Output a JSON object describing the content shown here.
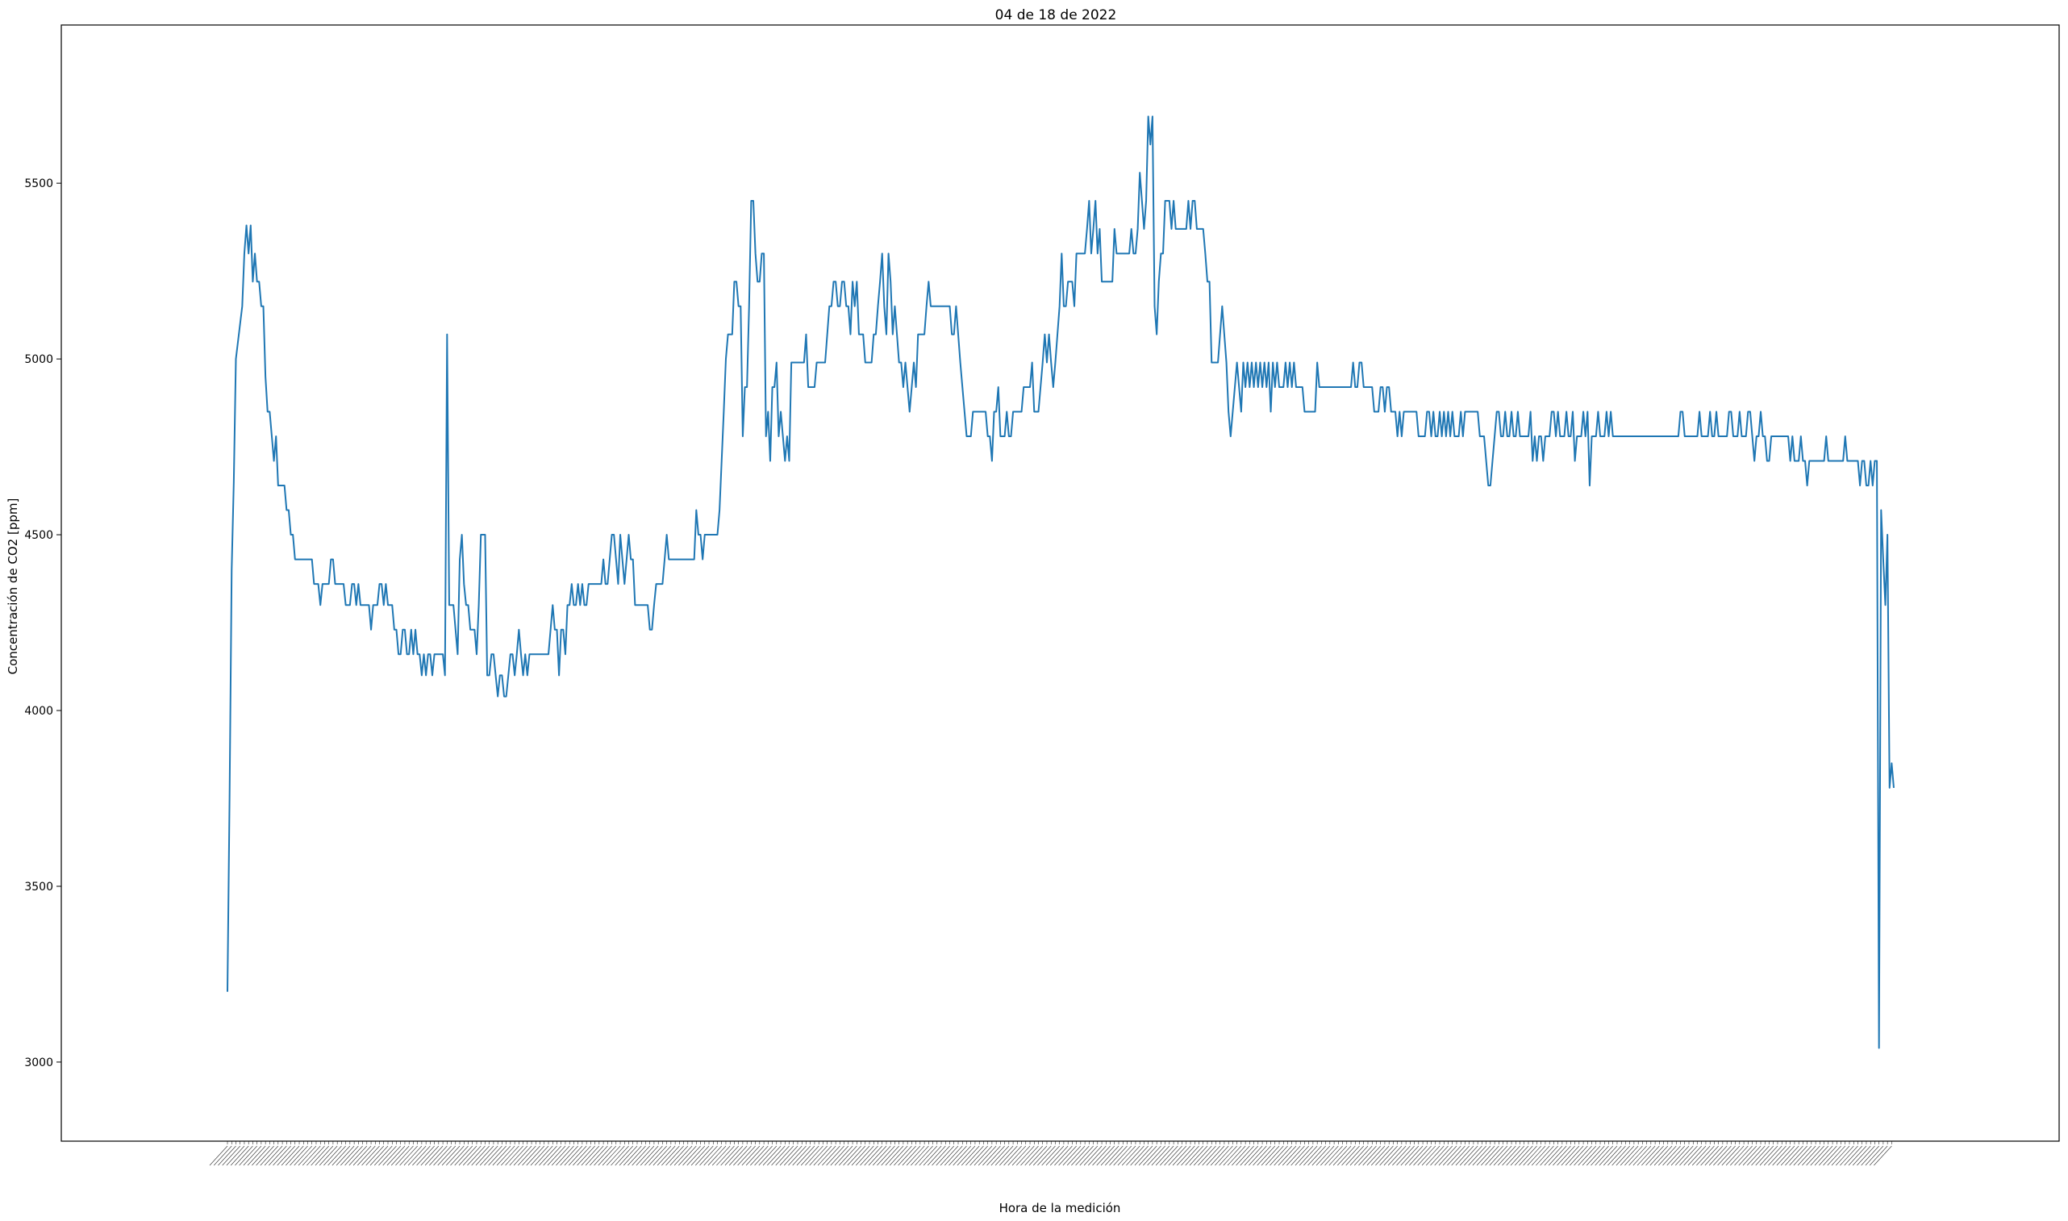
{
  "chart_data": {
    "type": "line",
    "title": "04 de 18 de 2022",
    "xlabel": "Hora de la medición",
    "ylabel": "Concentración de CO2 [ppm]",
    "ylim": [
      2775,
      5950
    ],
    "yticks": [
      3000,
      3500,
      4000,
      4500,
      5000,
      5500
    ],
    "grid": false,
    "line_color": "#1f77b4",
    "x_tick_labels_note": "dense rotated time labels (illegible)",
    "series": [
      {
        "values": [
          3200,
          3750,
          4400,
          4650,
          5000,
          5050,
          5100,
          5150,
          5300,
          5380,
          5300,
          5380,
          5220,
          5300,
          5220,
          5220,
          5150,
          5150,
          4950,
          4850,
          4850,
          4780,
          4710,
          4780,
          4640,
          4640,
          4640,
          4640,
          4570,
          4570,
          4500,
          4500,
          4430,
          4430,
          4430,
          4430,
          4430,
          4430,
          4430,
          4430,
          4430,
          4360,
          4360,
          4360,
          4300,
          4360,
          4360,
          4360,
          4360,
          4430,
          4430,
          4360,
          4360,
          4360,
          4360,
          4360,
          4300,
          4300,
          4300,
          4360,
          4360,
          4300,
          4360,
          4300,
          4300,
          4300,
          4300,
          4300,
          4230,
          4300,
          4300,
          4300,
          4360,
          4360,
          4300,
          4360,
          4300,
          4300,
          4300,
          4230,
          4230,
          4160,
          4160,
          4230,
          4230,
          4160,
          4160,
          4230,
          4160,
          4230,
          4160,
          4160,
          4100,
          4160,
          4100,
          4160,
          4160,
          4100,
          4160,
          4160,
          4160,
          4160,
          4160,
          4100,
          5070,
          4300,
          4300,
          4300,
          4230,
          4160,
          4430,
          4500,
          4360,
          4300,
          4300,
          4230,
          4230,
          4230,
          4160,
          4300,
          4500,
          4500,
          4500,
          4100,
          4100,
          4160,
          4160,
          4100,
          4040,
          4100,
          4100,
          4040,
          4040,
          4100,
          4160,
          4160,
          4100,
          4160,
          4230,
          4160,
          4100,
          4160,
          4100,
          4160,
          4160,
          4160,
          4160,
          4160,
          4160,
          4160,
          4160,
          4160,
          4160,
          4230,
          4300,
          4230,
          4230,
          4100,
          4230,
          4230,
          4160,
          4300,
          4300,
          4360,
          4300,
          4300,
          4360,
          4300,
          4360,
          4300,
          4300,
          4360,
          4360,
          4360,
          4360,
          4360,
          4360,
          4360,
          4430,
          4360,
          4360,
          4430,
          4500,
          4500,
          4430,
          4360,
          4500,
          4430,
          4360,
          4430,
          4500,
          4430,
          4430,
          4300,
          4300,
          4300,
          4300,
          4300,
          4300,
          4300,
          4230,
          4230,
          4300,
          4360,
          4360,
          4360,
          4360,
          4430,
          4500,
          4430,
          4430,
          4430,
          4430,
          4430,
          4430,
          4430,
          4430,
          4430,
          4430,
          4430,
          4430,
          4430,
          4570,
          4500,
          4500,
          4430,
          4500,
          4500,
          4500,
          4500,
          4500,
          4500,
          4500,
          4570,
          4710,
          4850,
          5000,
          5070,
          5070,
          5070,
          5220,
          5220,
          5150,
          5150,
          4780,
          4920,
          4920,
          5150,
          5450,
          5450,
          5300,
          5220,
          5220,
          5300,
          5300,
          4780,
          4850,
          4710,
          4920,
          4920,
          4990,
          4780,
          4850,
          4780,
          4710,
          4780,
          4710,
          4990,
          4990,
          4990,
          4990,
          4990,
          4990,
          4990,
          5070,
          4920,
          4920,
          4920,
          4920,
          4990,
          4990,
          4990,
          4990,
          4990,
          5070,
          5150,
          5150,
          5220,
          5220,
          5150,
          5150,
          5220,
          5220,
          5150,
          5150,
          5070,
          5220,
          5150,
          5220,
          5070,
          5070,
          5070,
          4990,
          4990,
          4990,
          4990,
          5070,
          5070,
          5150,
          5220,
          5300,
          5150,
          5070,
          5300,
          5220,
          5070,
          5150,
          5070,
          4990,
          4990,
          4920,
          4990,
          4920,
          4850,
          4920,
          4990,
          4920,
          5070,
          5070,
          5070,
          5070,
          5150,
          5220,
          5150,
          5150,
          5150,
          5150,
          5150,
          5150,
          5150,
          5150,
          5150,
          5150,
          5070,
          5070,
          5150,
          5070,
          4990,
          4920,
          4850,
          4780,
          4780,
          4780,
          4850,
          4850,
          4850,
          4850,
          4850,
          4850,
          4850,
          4780,
          4780,
          4710,
          4850,
          4850,
          4920,
          4780,
          4780,
          4780,
          4850,
          4780,
          4780,
          4850,
          4850,
          4850,
          4850,
          4850,
          4920,
          4920,
          4920,
          4920,
          4990,
          4850,
          4850,
          4850,
          4920,
          4990,
          5070,
          4990,
          5070,
          4990,
          4920,
          4990,
          5070,
          5150,
          5300,
          5150,
          5150,
          5220,
          5220,
          5220,
          5150,
          5300,
          5300,
          5300,
          5300,
          5300,
          5370,
          5450,
          5300,
          5370,
          5450,
          5300,
          5370,
          5220,
          5220,
          5220,
          5220,
          5220,
          5220,
          5370,
          5300,
          5300,
          5300,
          5300,
          5300,
          5300,
          5300,
          5370,
          5300,
          5300,
          5370,
          5530,
          5450,
          5370,
          5450,
          5690,
          5610,
          5690,
          5150,
          5070,
          5220,
          5300,
          5300,
          5450,
          5450,
          5450,
          5370,
          5450,
          5370,
          5370,
          5370,
          5370,
          5370,
          5370,
          5450,
          5370,
          5450,
          5450,
          5370,
          5370,
          5370,
          5370,
          5300,
          5220,
          5220,
          4990,
          4990,
          4990,
          4990,
          5070,
          5150,
          5070,
          4990,
          4850,
          4780,
          4850,
          4920,
          4990,
          4920,
          4850,
          4990,
          4920,
          4990,
          4920,
          4990,
          4920,
          4990,
          4920,
          4990,
          4920,
          4990,
          4920,
          4990,
          4850,
          4990,
          4920,
          4990,
          4920,
          4920,
          4920,
          4990,
          4920,
          4990,
          4920,
          4990,
          4920,
          4920,
          4920,
          4920,
          4850,
          4850,
          4850,
          4850,
          4850,
          4850,
          4990,
          4920,
          4920,
          4920,
          4920,
          4920,
          4920,
          4920,
          4920,
          4920,
          4920,
          4920,
          4920,
          4920,
          4920,
          4920,
          4920,
          4990,
          4920,
          4920,
          4990,
          4990,
          4920,
          4920,
          4920,
          4920,
          4920,
          4850,
          4850,
          4850,
          4920,
          4920,
          4850,
          4920,
          4920,
          4850,
          4850,
          4850,
          4780,
          4850,
          4780,
          4850,
          4850,
          4850,
          4850,
          4850,
          4850,
          4850,
          4780,
          4780,
          4780,
          4780,
          4850,
          4850,
          4780,
          4850,
          4780,
          4780,
          4850,
          4780,
          4850,
          4780,
          4850,
          4780,
          4850,
          4780,
          4780,
          4780,
          4850,
          4780,
          4850,
          4850,
          4850,
          4850,
          4850,
          4850,
          4850,
          4780,
          4780,
          4780,
          4710,
          4640,
          4640,
          4710,
          4780,
          4850,
          4850,
          4780,
          4780,
          4850,
          4780,
          4780,
          4850,
          4780,
          4780,
          4850,
          4780,
          4780,
          4780,
          4780,
          4780,
          4850,
          4710,
          4780,
          4710,
          4780,
          4780,
          4710,
          4780,
          4780,
          4780,
          4850,
          4850,
          4780,
          4850,
          4780,
          4780,
          4780,
          4850,
          4780,
          4780,
          4850,
          4710,
          4780,
          4780,
          4780,
          4850,
          4780,
          4850,
          4640,
          4780,
          4780,
          4780,
          4850,
          4780,
          4780,
          4780,
          4850,
          4780,
          4850,
          4780,
          4780,
          4780,
          4780,
          4780,
          4780,
          4780,
          4780,
          4780,
          4780,
          4780,
          4780,
          4780,
          4780,
          4780,
          4780,
          4780,
          4780,
          4780,
          4780,
          4780,
          4780,
          4780,
          4780,
          4780,
          4780,
          4780,
          4780,
          4780,
          4780,
          4780,
          4780,
          4850,
          4850,
          4780,
          4780,
          4780,
          4780,
          4780,
          4780,
          4780,
          4850,
          4780,
          4780,
          4780,
          4780,
          4850,
          4780,
          4780,
          4850,
          4780,
          4780,
          4780,
          4780,
          4780,
          4850,
          4850,
          4780,
          4780,
          4780,
          4850,
          4780,
          4780,
          4780,
          4850,
          4850,
          4780,
          4710,
          4780,
          4780,
          4850,
          4780,
          4780,
          4710,
          4710,
          4780,
          4780,
          4780,
          4780,
          4780,
          4780,
          4780,
          4780,
          4780,
          4710,
          4780,
          4710,
          4710,
          4710,
          4780,
          4710,
          4710,
          4640,
          4710,
          4710,
          4710,
          4710,
          4710,
          4710,
          4710,
          4710,
          4780,
          4710,
          4710,
          4710,
          4710,
          4710,
          4710,
          4710,
          4710,
          4780,
          4710,
          4710,
          4710,
          4710,
          4710,
          4710,
          4640,
          4710,
          4710,
          4640,
          4640,
          4710,
          4640,
          4710,
          4710,
          3040,
          4570,
          4430,
          4300,
          4500,
          3780,
          3850,
          3780
        ]
      }
    ]
  }
}
